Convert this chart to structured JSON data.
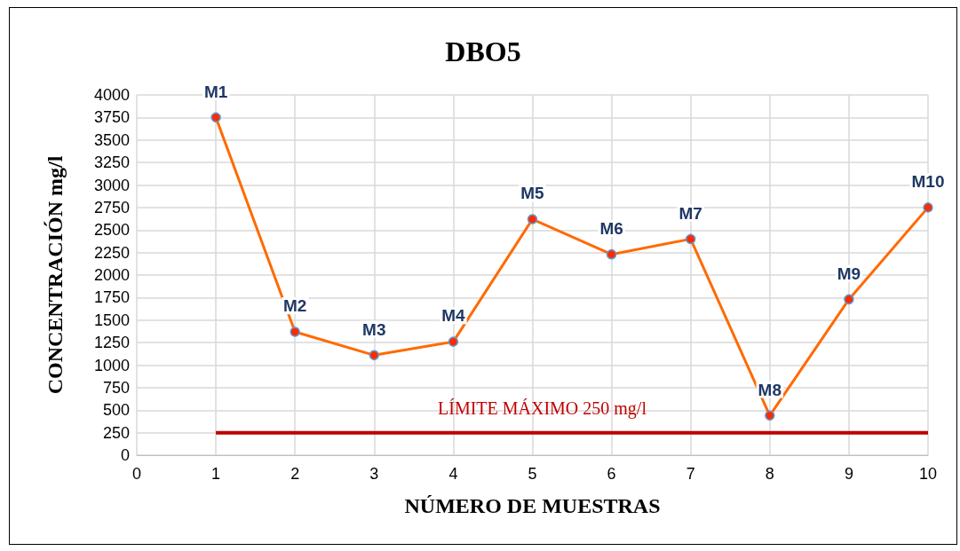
{
  "chart_data": {
    "type": "line",
    "title": "DBO5",
    "xlabel": "NÚMERO DE MUESTRAS",
    "ylabel": "CONCENTRACIÓN mg/l",
    "x": [
      1,
      2,
      3,
      4,
      5,
      6,
      7,
      8,
      9,
      10
    ],
    "series": [
      {
        "color": "#ff6a00",
        "values": [
          3750,
          1370,
          1110,
          1260,
          2620,
          2230,
          2400,
          440,
          1730,
          2750
        ],
        "value_labels": [
          "M1",
          "M2",
          "M3",
          "M4",
          "M5",
          "M6",
          "M7",
          "M8",
          "M9",
          "M10"
        ],
        "marker": "circle"
      },
      {
        "name": "LÍMITE MÁXIMO 250 mg/l",
        "color": "#c00000",
        "x": [
          1,
          10
        ],
        "values": [
          250,
          250
        ],
        "marker": "none"
      }
    ],
    "xlim": [
      0,
      10
    ],
    "xticks": [
      0,
      1,
      2,
      3,
      4,
      5,
      6,
      7,
      8,
      9,
      10
    ],
    "ylim": [
      0,
      4000
    ],
    "yticks": [
      0,
      250,
      500,
      750,
      1000,
      1250,
      1500,
      1750,
      2000,
      2250,
      2500,
      2750,
      3000,
      3250,
      3500,
      3750,
      4000
    ],
    "grid": true,
    "legend": false
  }
}
